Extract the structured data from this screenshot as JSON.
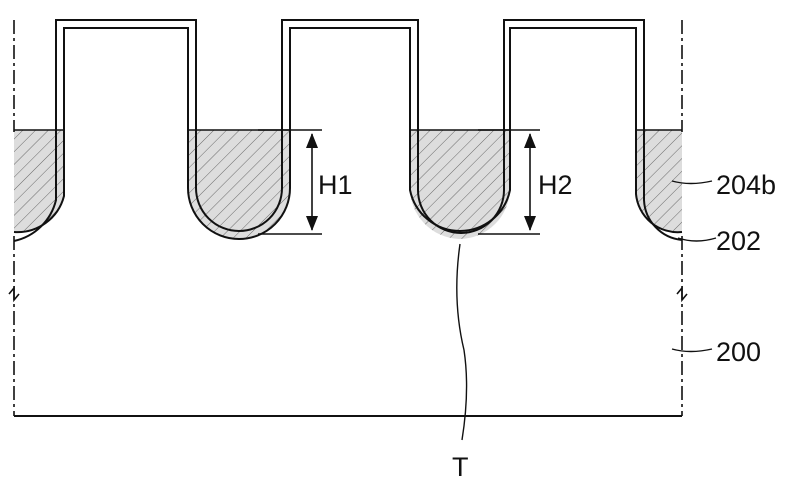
{
  "figure": {
    "labels": {
      "h1": "H1",
      "h2": "H2",
      "fill_layer": "204b",
      "liner": "202",
      "substrate": "200",
      "trench": "T"
    }
  },
  "colors": {
    "ink": "#111111",
    "hatch_fill": "#dddddd"
  }
}
